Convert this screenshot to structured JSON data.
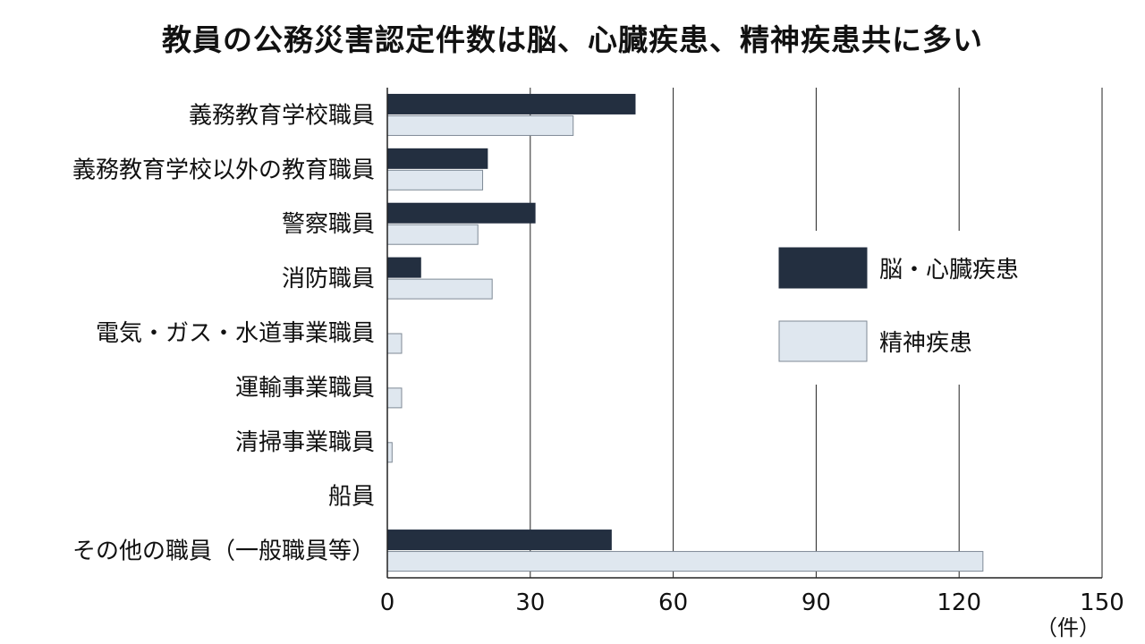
{
  "chart_data": {
    "type": "bar",
    "orientation": "horizontal",
    "title": "教員の公務災害認定件数は脳、心臓疾患、精神疾患共に多い",
    "categories": [
      "義務教育学校職員",
      "義務教育学校以外の教育職員",
      "警察職員",
      "消防職員",
      "電気・ガス・水道事業職員",
      "運輸事業職員",
      "清掃事業職員",
      "船員",
      "その他の職員（一般職員等）"
    ],
    "series": [
      {
        "name": "脳・心臓疾患",
        "color": "#232f40",
        "values": [
          52,
          21,
          31,
          7,
          0,
          0,
          0,
          0,
          47
        ]
      },
      {
        "name": "精神疾患",
        "color": "#dfe7ef",
        "values": [
          39,
          20,
          19,
          22,
          3,
          3,
          1,
          0,
          125
        ]
      }
    ],
    "xlim": [
      0,
      150
    ],
    "xticks": [
      0,
      30,
      60,
      90,
      120,
      150
    ],
    "xunit": "（件）",
    "grid": true,
    "legend_position": "right"
  }
}
